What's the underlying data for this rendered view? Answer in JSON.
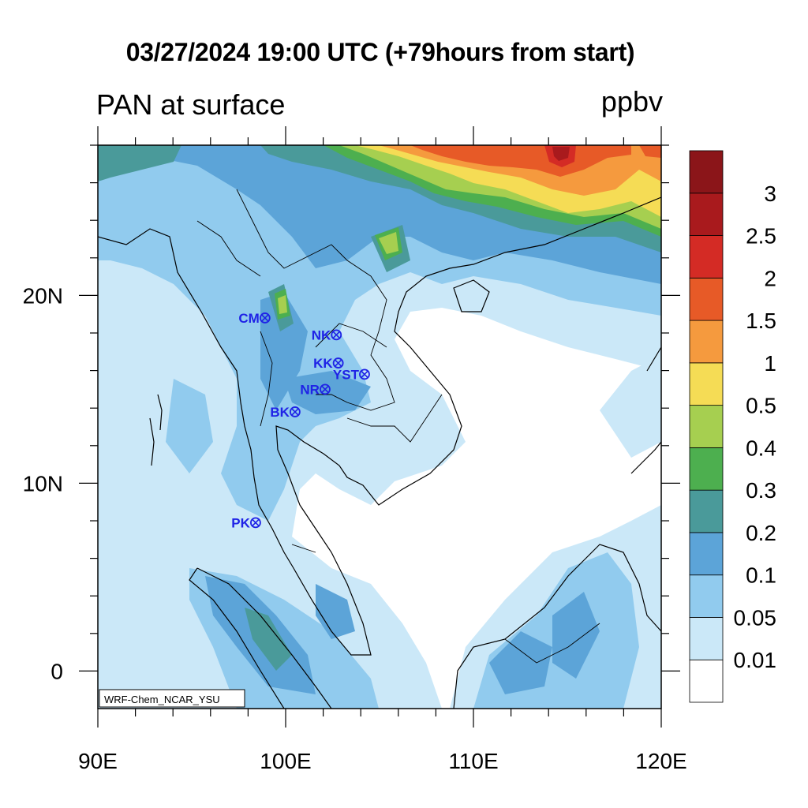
{
  "title": "03/27/2024 19:00 UTC (+79hours from start)",
  "subtitle": "PAN at surface",
  "units": "ppbv",
  "credit": "WRF-Chem_NCAR_YSU",
  "axes": {
    "x_ticks": [
      "90E",
      "100E",
      "110E",
      "120E"
    ],
    "y_ticks": [
      "20N",
      "10N",
      "0"
    ],
    "lon_range": [
      90,
      120
    ],
    "lat_range": [
      -2,
      28
    ]
  },
  "colorbar": {
    "levels": [
      "0.01",
      "0.05",
      "0.1",
      "0.2",
      "0.3",
      "0.4",
      "0.5",
      "1",
      "1.5",
      "2",
      "2.5",
      "3"
    ],
    "colors": [
      "#ffffff",
      "#cbe8f8",
      "#91cbee",
      "#5ca4d8",
      "#4a9a9a",
      "#4daf4f",
      "#a6cf50",
      "#f5dc55",
      "#f59a3e",
      "#e75a27",
      "#d42b25",
      "#a91a1d",
      "#8b1519"
    ]
  },
  "stations": [
    {
      "name": "CM",
      "lon": 98.9,
      "lat": 18.8
    },
    {
      "name": "NK",
      "lon": 102.7,
      "lat": 17.9
    },
    {
      "name": "KK",
      "lon": 102.8,
      "lat": 16.4
    },
    {
      "name": "YST",
      "lon": 104.2,
      "lat": 15.8
    },
    {
      "name": "NR",
      "lon": 102.1,
      "lat": 15.0
    },
    {
      "name": "BK",
      "lon": 100.5,
      "lat": 13.8
    },
    {
      "name": "PK",
      "lon": 98.4,
      "lat": 7.9
    }
  ]
}
